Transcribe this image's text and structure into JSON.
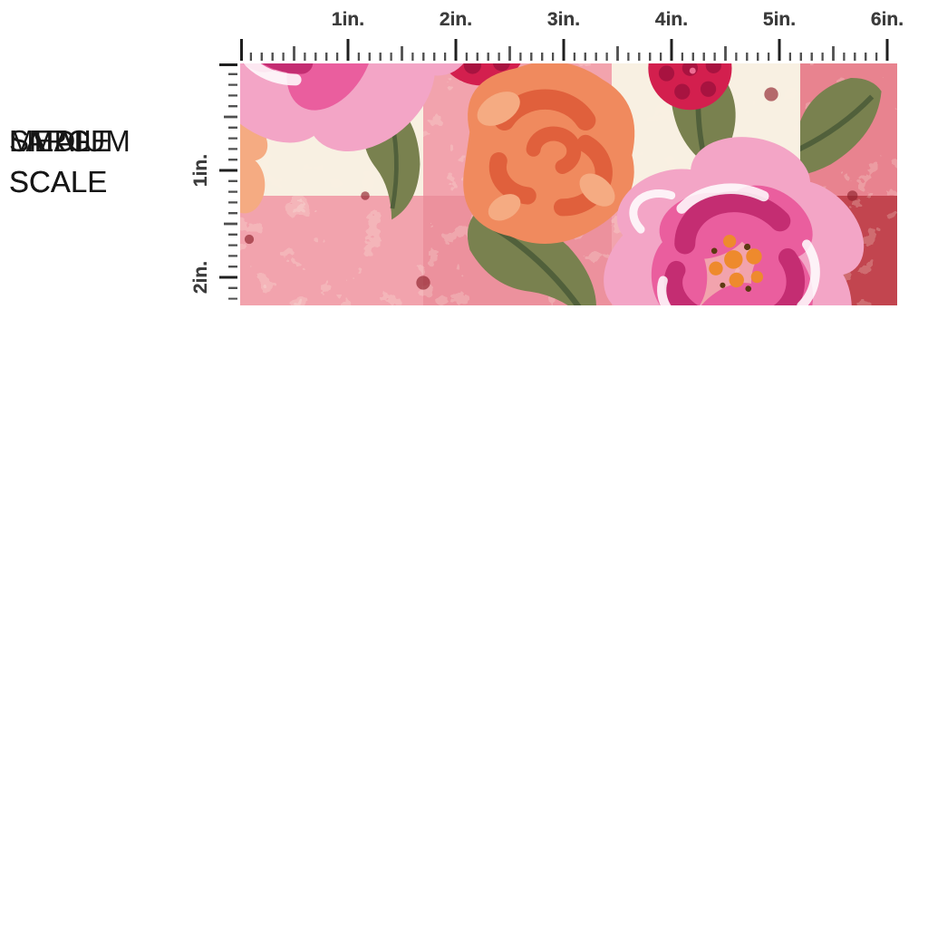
{
  "page": {
    "background_color": "#ffffff"
  },
  "rows": [
    {
      "id": "small",
      "scale_label": "SMALL SCALE",
      "pattern_scale": 1
    },
    {
      "id": "medium",
      "scale_label": "MEDIUM SCALE",
      "pattern_scale": 1.6
    },
    {
      "id": "large",
      "scale_label": "LARGE SCALE",
      "pattern_scale": 3.2
    }
  ],
  "ruler": {
    "horizontal_labels": [
      "1in.",
      "2in.",
      "3in.",
      "4in.",
      "5in.",
      "6in."
    ],
    "vertical_labels": [
      "1in.",
      "2in."
    ],
    "label_color": "#3c3c3c",
    "tick_color_major": "#1f1f1f",
    "tick_color_minor": "#4f4f4f"
  },
  "fabric": {
    "pattern_name": "pink-buffalo-plaid-watercolor-floral",
    "motifs": [
      "peony",
      "rose",
      "raspberry",
      "leaf",
      "plaid-check"
    ],
    "colors": {
      "cream": "#f8f0e2",
      "plaid_pink_light": "#f2a3ad",
      "plaid_pink_mid": "#ec919d",
      "plaid_pink": "#e8838f",
      "plaid_red": "#c2454f",
      "plaid_red_dark": "#a12733",
      "splatter_red": "#8f1f2b",
      "peony_pink_light": "#f3a5c6",
      "peony_pink": "#ea5e9e",
      "peony_magenta": "#c42d72",
      "rose_orange": "#f08a5e",
      "rose_orange_deep": "#e0603c",
      "rose_peach": "#f5ab82",
      "raspberry": "#d31f4e",
      "raspberry_dark": "#a81340",
      "leaf_olive": "#79814f",
      "leaf_dark": "#51603b",
      "stamen_orange": "#ee8a2d",
      "highlight_white": "#ffffff"
    }
  }
}
